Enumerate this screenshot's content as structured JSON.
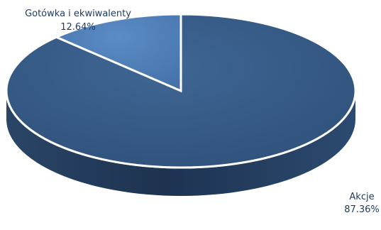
{
  "chart_data": {
    "type": "pie",
    "style": "3d",
    "slices": [
      {
        "label": "Akcje",
        "value": 87.36,
        "value_label": "87.36%",
        "color": "#355a85"
      },
      {
        "label": "Gotówka i ekwiwalenty",
        "value": 12.64,
        "value_label": "12.64%",
        "color": "#4a7ab5"
      }
    ],
    "separator_color": "#ffffff",
    "side_color": "#1f3652"
  }
}
